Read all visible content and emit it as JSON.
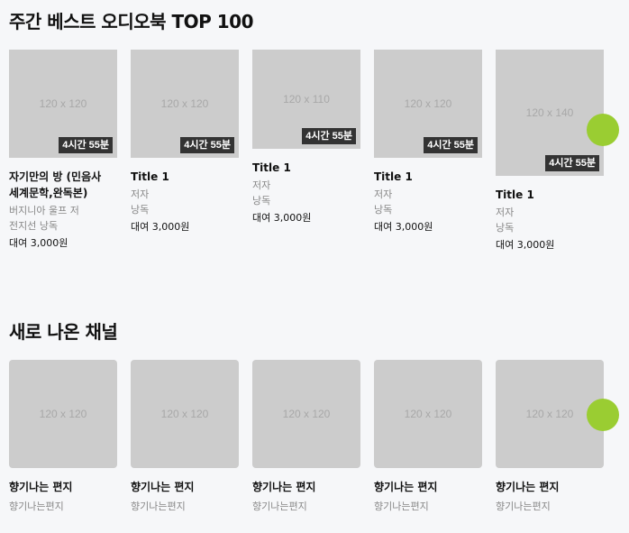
{
  "best": {
    "title": "주간 베스트 오디오북 TOP 100",
    "items": [
      {
        "thumb": "120 x 120",
        "duration": "4시간 55분",
        "title_line1": "자기만의 방 (민음사",
        "title_line2": "세계문학,완독본)",
        "author": "버지니아 울프 저",
        "narrator": "전지선 낭독",
        "price": "대여 3,000원"
      },
      {
        "thumb": "120 x 120",
        "duration": "4시간 55분",
        "title_line1": "Title 1",
        "author": "저자",
        "narrator": "낭독",
        "price": "대여 3,000원"
      },
      {
        "thumb": "120 x 110",
        "duration": "4시간 55분",
        "title_line1": "Title 1",
        "author": "저자",
        "narrator": "낭독",
        "price": "대여 3,000원"
      },
      {
        "thumb": "120 x 120",
        "duration": "4시간 55분",
        "title_line1": "Title 1",
        "author": "저자",
        "narrator": "낭독",
        "price": "대여 3,000원"
      },
      {
        "thumb": "120 x 140",
        "duration": "4시간 55분",
        "title_line1": "Title 1",
        "author": "저자",
        "narrator": "낭독",
        "price": "대여 3,000원"
      }
    ]
  },
  "channels": {
    "title": "새로 나온 채널",
    "items": [
      {
        "thumb": "120 x 120",
        "title": "향기나는 편지",
        "subtitle": "향기나는편지"
      },
      {
        "thumb": "120 x 120",
        "title": "향기나는 편지",
        "subtitle": "향기나는편지"
      },
      {
        "thumb": "120 x 120",
        "title": "향기나는 편지",
        "subtitle": "향기나는편지"
      },
      {
        "thumb": "120 x 120",
        "title": "향기나는 편지",
        "subtitle": "향기나는편지"
      },
      {
        "thumb": "120 x 120",
        "title": "향기나는 편지",
        "subtitle": "향기나는편지"
      }
    ]
  },
  "colors": {
    "accent": "#9acd32",
    "placeholder": "#cccccc",
    "badge": "#333333"
  }
}
